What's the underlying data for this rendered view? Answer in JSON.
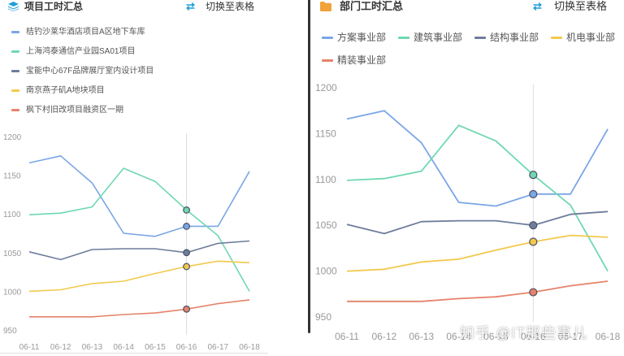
{
  "left_panel": {
    "title": "项目工时汇总",
    "switch_label": "切换至表格",
    "legend": [
      {
        "label": "桔钓沙莱华酒店项目A区地下车库",
        "color": "#7aa6e6"
      },
      {
        "label": "上海鸿泰通信产业园SA01项目",
        "color": "#6fd8b0"
      },
      {
        "label": "宝能中心67F品牌展厅室内设计项目",
        "color": "#6e7d9c"
      },
      {
        "label": "南京燕子矶A地块项目",
        "color": "#f2c94c"
      },
      {
        "label": "枫下村旧改项目融资区一期",
        "color": "#e5836a"
      }
    ]
  },
  "right_panel": {
    "title": "部门工时汇总",
    "switch_label": "切换至表格",
    "legend": [
      {
        "label": "方案事业部",
        "color": "#7aa6e6"
      },
      {
        "label": "建筑事业部",
        "color": "#6fd8b0"
      },
      {
        "label": "结构事业部",
        "color": "#6e7d9c"
      },
      {
        "label": "机电事业部",
        "color": "#f2c94c"
      },
      {
        "label": "精装事业部",
        "color": "#e5836a"
      }
    ]
  },
  "watermark": "知乎 @IT那些事儿",
  "chart_data": [
    {
      "type": "line",
      "title": "项目工时汇总",
      "x": [
        "06-11",
        "06-12",
        "06-13",
        "06-14",
        "06-15",
        "06-16",
        "06-17",
        "06-18"
      ],
      "ylim": [
        950,
        1200
      ],
      "yticks": [
        950,
        1000,
        1050,
        1100,
        1150,
        1200
      ],
      "grid": false,
      "highlight_x": "06-16",
      "legend_position": "top-left",
      "series": [
        {
          "name": "桔钓沙莱华酒店项目A区地下车库",
          "color": "#7aa6e6",
          "values": [
            1166,
            1175,
            1140,
            1075,
            1071,
            1084,
            1084,
            1155
          ]
        },
        {
          "name": "上海鸿泰通信产业园SA01项目",
          "color": "#6fd8b0",
          "values": [
            1099,
            1101,
            1109,
            1159,
            1142,
            1105,
            1072,
            1000
          ]
        },
        {
          "name": "宝能中心67F品牌展厅室内设计项目",
          "color": "#6e7d9c",
          "values": [
            1051,
            1041,
            1054,
            1055,
            1055,
            1050,
            1062,
            1065
          ]
        },
        {
          "name": "南京燕子矶A地块项目",
          "color": "#f2c94c",
          "values": [
            1000,
            1002,
            1010,
            1013,
            1023,
            1032,
            1039,
            1037
          ]
        },
        {
          "name": "枫下村旧改项目融资区一期",
          "color": "#e5836a",
          "values": [
            967,
            967,
            967,
            970,
            972,
            977,
            984,
            989
          ]
        }
      ]
    },
    {
      "type": "line",
      "title": "部门工时汇总",
      "x": [
        "06-11",
        "06-12",
        "06-13",
        "06-14",
        "06-15",
        "06-16",
        "06-17",
        "06-18"
      ],
      "ylim": [
        950,
        1200
      ],
      "yticks": [
        950,
        1000,
        1050,
        1100,
        1150,
        1200
      ],
      "grid": false,
      "highlight_x": "06-16",
      "legend_position": "top",
      "series": [
        {
          "name": "方案事业部",
          "color": "#7aa6e6",
          "values": [
            1166,
            1175,
            1140,
            1075,
            1071,
            1084,
            1084,
            1155
          ]
        },
        {
          "name": "建筑事业部",
          "color": "#6fd8b0",
          "values": [
            1099,
            1101,
            1109,
            1159,
            1142,
            1105,
            1072,
            1000
          ]
        },
        {
          "name": "结构事业部",
          "color": "#6e7d9c",
          "values": [
            1051,
            1041,
            1054,
            1055,
            1055,
            1050,
            1062,
            1065
          ]
        },
        {
          "name": "机电事业部",
          "color": "#f2c94c",
          "values": [
            1000,
            1002,
            1010,
            1013,
            1023,
            1032,
            1039,
            1037
          ]
        },
        {
          "name": "精装事业部",
          "color": "#e5836a",
          "values": [
            967,
            967,
            967,
            970,
            972,
            977,
            984,
            989
          ]
        }
      ]
    }
  ]
}
